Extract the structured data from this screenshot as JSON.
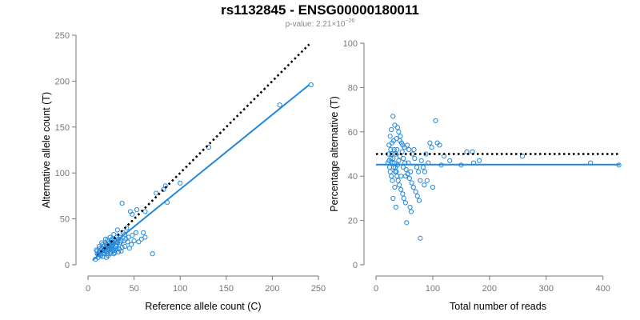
{
  "title": "rs1132845 - ENSG00000180011",
  "subtitle": {
    "prefix": "p-value: 2.21×10",
    "exponent": "−26"
  },
  "colors": {
    "points": "#2288dd",
    "fit_line": "#2288dd",
    "reference_line": "#000000",
    "axis": "#777777"
  },
  "chart_data": [
    {
      "type": "scatter",
      "xlabel": "Reference allele count (C)",
      "ylabel": "Alternative allele count (T)",
      "xlim": [
        0,
        250
      ],
      "ylim": [
        0,
        250
      ],
      "xticks": [
        0,
        50,
        100,
        150,
        200,
        250
      ],
      "yticks": [
        0,
        50,
        100,
        150,
        200,
        250
      ],
      "grid": false,
      "reference_line": {
        "style": "dotted",
        "x": [
          10,
          240
        ],
        "y": [
          10,
          240
        ]
      },
      "fit_line": {
        "style": "solid",
        "x": [
          5,
          240
        ],
        "y": [
          5,
          196
        ]
      },
      "series": [
        {
          "points": [
            [
              242,
              196
            ],
            [
              208,
              174
            ],
            [
              131,
              128
            ],
            [
              100,
              89
            ],
            [
              84,
              86
            ],
            [
              82,
              82
            ],
            [
              86,
              68
            ],
            [
              74,
              78
            ],
            [
              62,
              58
            ],
            [
              53,
              60
            ],
            [
              48,
              55
            ],
            [
              46,
              58
            ],
            [
              37,
              67
            ],
            [
              70,
              12
            ],
            [
              62,
              30
            ],
            [
              60,
              35
            ],
            [
              58,
              28
            ],
            [
              52,
              35
            ],
            [
              48,
              32
            ],
            [
              47,
              22
            ],
            [
              42,
              40
            ],
            [
              40,
              20
            ],
            [
              38,
              35
            ],
            [
              36,
              15
            ],
            [
              35,
              30
            ],
            [
              33,
              28
            ],
            [
              32,
              38
            ],
            [
              30,
              25
            ],
            [
              29,
              18
            ],
            [
              28,
              33
            ],
            [
              27,
              22
            ],
            [
              26,
              28
            ],
            [
              25,
              14
            ],
            [
              24,
              30
            ],
            [
              23,
              20
            ],
            [
              22,
              25
            ],
            [
              21,
              17
            ],
            [
              20,
              22
            ],
            [
              19,
              28
            ],
            [
              18,
              12
            ],
            [
              17,
              20
            ],
            [
              16,
              15
            ],
            [
              15,
              24
            ],
            [
              14,
              10
            ],
            [
              13,
              18
            ],
            [
              12,
              14
            ],
            [
              11,
              8
            ],
            [
              10,
              12
            ],
            [
              9,
              16
            ],
            [
              8,
              6
            ],
            [
              24,
              18
            ],
            [
              20,
              14
            ],
            [
              22,
              10
            ],
            [
              26,
              16
            ],
            [
              28,
              12
            ],
            [
              30,
              20
            ],
            [
              34,
              22
            ],
            [
              36,
              26
            ],
            [
              19,
              24
            ],
            [
              17,
              13
            ],
            [
              15,
              18
            ],
            [
              13,
              11
            ],
            [
              21,
              27
            ],
            [
              23,
              16
            ],
            [
              25,
              21
            ],
            [
              27,
              24
            ],
            [
              31,
              17
            ],
            [
              33,
              14
            ],
            [
              35,
              24
            ],
            [
              16,
              22
            ],
            [
              18,
              17
            ],
            [
              12,
              20
            ],
            [
              14,
              16
            ],
            [
              10,
              15
            ],
            [
              11,
              11
            ],
            [
              29,
              27
            ],
            [
              31,
              30
            ],
            [
              39,
              26
            ],
            [
              41,
              28
            ],
            [
              44,
              30
            ],
            [
              45,
              18
            ],
            [
              50,
              26
            ],
            [
              55,
              25
            ],
            [
              20,
              8
            ],
            [
              24,
              12
            ],
            [
              28,
              16
            ],
            [
              32,
              24
            ],
            [
              26,
              19
            ],
            [
              22,
              19
            ],
            [
              18,
              21
            ],
            [
              16,
              9
            ],
            [
              19,
              15
            ],
            [
              21,
              12
            ],
            [
              23,
              23
            ],
            [
              25,
              26
            ],
            [
              27,
              15
            ],
            [
              29,
              13
            ],
            [
              31,
              22
            ],
            [
              34,
              17
            ],
            [
              37,
              19
            ],
            [
              40,
              33
            ],
            [
              43,
              25
            ]
          ]
        }
      ]
    },
    {
      "type": "scatter",
      "xlabel": "Total number of reads",
      "ylabel": "Percentage alternative (T)",
      "xlim": [
        0,
        430
      ],
      "ylim": [
        0,
        100
      ],
      "xticks": [
        0,
        100,
        200,
        300,
        400
      ],
      "yticks": [
        0,
        20,
        40,
        60,
        80,
        100
      ],
      "grid": false,
      "reference_line": {
        "style": "dotted",
        "x": [
          0,
          430
        ],
        "y": [
          50,
          50
        ]
      },
      "fit_line": {
        "style": "solid",
        "x": [
          0,
          430
        ],
        "y": [
          45.2,
          45.2
        ]
      },
      "series": [
        {
          "points": [
            [
              30,
              67
            ],
            [
              33,
              63
            ],
            [
              38,
              62
            ],
            [
              40,
              60
            ],
            [
              27,
              61
            ],
            [
              25,
              58
            ],
            [
              36,
              57
            ],
            [
              42,
              56
            ],
            [
              45,
              55
            ],
            [
              50,
              53
            ],
            [
              55,
              54
            ],
            [
              58,
              52
            ],
            [
              28,
              55
            ],
            [
              32,
              52
            ],
            [
              35,
              50
            ],
            [
              26,
              48
            ],
            [
              29,
              46
            ],
            [
              31,
              44
            ],
            [
              34,
              42
            ],
            [
              37,
              40
            ],
            [
              39,
              38
            ],
            [
              41,
              36
            ],
            [
              44,
              34
            ],
            [
              47,
              32
            ],
            [
              49,
              30
            ],
            [
              52,
              28
            ],
            [
              60,
              26
            ],
            [
              62,
              24
            ],
            [
              54,
              19
            ],
            [
              78,
              12
            ],
            [
              30,
              30
            ],
            [
              35,
              26
            ],
            [
              33,
              35
            ],
            [
              24,
              44
            ],
            [
              22,
              50
            ],
            [
              23,
              54
            ],
            [
              26,
              52
            ],
            [
              28,
              50
            ],
            [
              30,
              48
            ],
            [
              32,
              46
            ],
            [
              34,
              44
            ],
            [
              36,
              42
            ],
            [
              38,
              45
            ],
            [
              40,
              47
            ],
            [
              42,
              49
            ],
            [
              46,
              51
            ],
            [
              48,
              48
            ],
            [
              51,
              46
            ],
            [
              53,
              43
            ],
            [
              56,
              41
            ],
            [
              59,
              39
            ],
            [
              63,
              37
            ],
            [
              66,
              35
            ],
            [
              70,
              33
            ],
            [
              73,
              31
            ],
            [
              76,
              29
            ],
            [
              80,
              47
            ],
            [
              83,
              44
            ],
            [
              86,
              42
            ],
            [
              90,
              38
            ],
            [
              95,
              55
            ],
            [
              98,
              53
            ],
            [
              100,
              35
            ],
            [
              105,
              65
            ],
            [
              108,
              55
            ],
            [
              112,
              54
            ],
            [
              115,
              45
            ],
            [
              120,
              49
            ],
            [
              130,
              47
            ],
            [
              150,
              45
            ],
            [
              160,
              51
            ],
            [
              170,
              51
            ],
            [
              172,
              46
            ],
            [
              182,
              47
            ],
            [
              258,
              49
            ],
            [
              378,
              46
            ],
            [
              428,
              45
            ],
            [
              64,
              50
            ],
            [
              68,
              48
            ],
            [
              72,
              44
            ],
            [
              61,
              42
            ],
            [
              57,
              46
            ],
            [
              44,
              40
            ],
            [
              48,
              44
            ],
            [
              52,
              40
            ],
            [
              27,
              40
            ],
            [
              25,
              42
            ],
            [
              29,
              38
            ],
            [
              31,
              56
            ],
            [
              37,
              52
            ],
            [
              43,
              58
            ],
            [
              47,
              54
            ],
            [
              21,
              46
            ],
            [
              23,
              47
            ],
            [
              67,
              52
            ],
            [
              75,
              42
            ],
            [
              88,
              50
            ],
            [
              92,
              46
            ],
            [
              78,
              38
            ],
            [
              85,
              36
            ]
          ]
        }
      ]
    }
  ]
}
